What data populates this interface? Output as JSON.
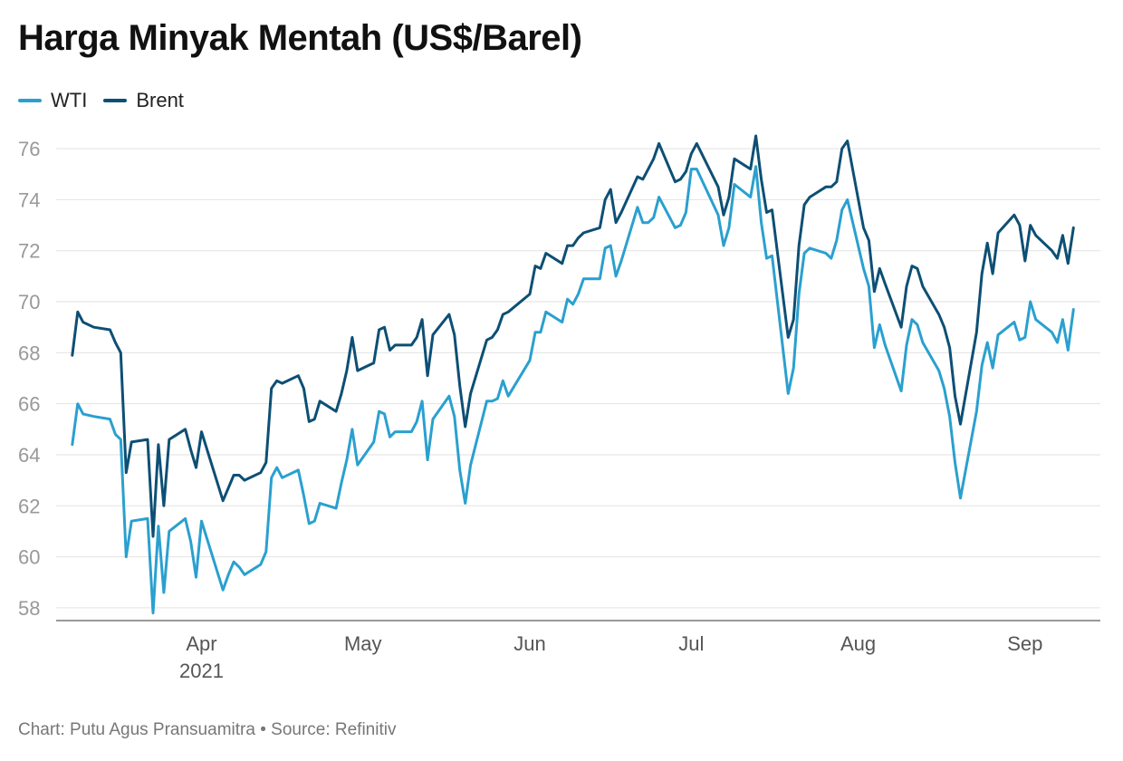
{
  "chart_data": {
    "type": "line",
    "title": "Harga Minyak Mentah (US$/Barel)",
    "footer": {
      "credit": "Chart: Putu Agus Pransuamitra",
      "separator": "•",
      "source": "Source: Refinitiv"
    },
    "xlabel": "",
    "ylabel": "",
    "ylim": [
      57.5,
      76.5
    ],
    "yticks": [
      58,
      60,
      62,
      64,
      66,
      68,
      70,
      72,
      74,
      76
    ],
    "xlim": [
      "2021-03-05",
      "2021-09-15"
    ],
    "xticks": [
      {
        "date": "2021-04-01",
        "label": "Apr",
        "sublabel": "2021"
      },
      {
        "date": "2021-05-01",
        "label": "May",
        "sublabel": ""
      },
      {
        "date": "2021-06-01",
        "label": "Jun",
        "sublabel": ""
      },
      {
        "date": "2021-07-01",
        "label": "Jul",
        "sublabel": ""
      },
      {
        "date": "2021-08-01",
        "label": "Aug",
        "sublabel": ""
      },
      {
        "date": "2021-09-01",
        "label": "Sep",
        "sublabel": ""
      }
    ],
    "grid": true,
    "legend_position": "top-left",
    "series": [
      {
        "name": "WTI",
        "color": "#2aa0cf",
        "points": [
          [
            "2021-03-08",
            64.4
          ],
          [
            "2021-03-09",
            66.0
          ],
          [
            "2021-03-10",
            65.6
          ],
          [
            "2021-03-12",
            65.5
          ],
          [
            "2021-03-15",
            65.4
          ],
          [
            "2021-03-16",
            64.8
          ],
          [
            "2021-03-17",
            64.6
          ],
          [
            "2021-03-18",
            60.0
          ],
          [
            "2021-03-19",
            61.4
          ],
          [
            "2021-03-22",
            61.5
          ],
          [
            "2021-03-23",
            57.8
          ],
          [
            "2021-03-24",
            61.2
          ],
          [
            "2021-03-25",
            58.6
          ],
          [
            "2021-03-26",
            61.0
          ],
          [
            "2021-03-29",
            61.5
          ],
          [
            "2021-03-30",
            60.6
          ],
          [
            "2021-03-31",
            59.2
          ],
          [
            "2021-04-01",
            61.4
          ],
          [
            "2021-04-05",
            58.7
          ],
          [
            "2021-04-06",
            59.3
          ],
          [
            "2021-04-07",
            59.8
          ],
          [
            "2021-04-08",
            59.6
          ],
          [
            "2021-04-09",
            59.3
          ],
          [
            "2021-04-12",
            59.7
          ],
          [
            "2021-04-13",
            60.2
          ],
          [
            "2021-04-14",
            63.1
          ],
          [
            "2021-04-15",
            63.5
          ],
          [
            "2021-04-16",
            63.1
          ],
          [
            "2021-04-19",
            63.4
          ],
          [
            "2021-04-20",
            62.4
          ],
          [
            "2021-04-21",
            61.3
          ],
          [
            "2021-04-22",
            61.4
          ],
          [
            "2021-04-23",
            62.1
          ],
          [
            "2021-04-26",
            61.9
          ],
          [
            "2021-04-27",
            62.9
          ],
          [
            "2021-04-28",
            63.8
          ],
          [
            "2021-04-29",
            65.0
          ],
          [
            "2021-04-30",
            63.6
          ],
          [
            "2021-05-03",
            64.5
          ],
          [
            "2021-05-04",
            65.7
          ],
          [
            "2021-05-05",
            65.6
          ],
          [
            "2021-05-06",
            64.7
          ],
          [
            "2021-05-07",
            64.9
          ],
          [
            "2021-05-10",
            64.9
          ],
          [
            "2021-05-11",
            65.3
          ],
          [
            "2021-05-12",
            66.1
          ],
          [
            "2021-05-13",
            63.8
          ],
          [
            "2021-05-14",
            65.4
          ],
          [
            "2021-05-17",
            66.3
          ],
          [
            "2021-05-18",
            65.5
          ],
          [
            "2021-05-19",
            63.4
          ],
          [
            "2021-05-20",
            62.1
          ],
          [
            "2021-05-21",
            63.6
          ],
          [
            "2021-05-24",
            66.1
          ],
          [
            "2021-05-25",
            66.1
          ],
          [
            "2021-05-26",
            66.2
          ],
          [
            "2021-05-27",
            66.9
          ],
          [
            "2021-05-28",
            66.3
          ],
          [
            "2021-06-01",
            67.7
          ],
          [
            "2021-06-02",
            68.8
          ],
          [
            "2021-06-03",
            68.8
          ],
          [
            "2021-06-04",
            69.6
          ],
          [
            "2021-06-07",
            69.2
          ],
          [
            "2021-06-08",
            70.1
          ],
          [
            "2021-06-09",
            69.9
          ],
          [
            "2021-06-10",
            70.3
          ],
          [
            "2021-06-11",
            70.9
          ],
          [
            "2021-06-14",
            70.9
          ],
          [
            "2021-06-15",
            72.1
          ],
          [
            "2021-06-16",
            72.2
          ],
          [
            "2021-06-17",
            71.0
          ],
          [
            "2021-06-18",
            71.6
          ],
          [
            "2021-06-21",
            73.7
          ],
          [
            "2021-06-22",
            73.1
          ],
          [
            "2021-06-23",
            73.1
          ],
          [
            "2021-06-24",
            73.3
          ],
          [
            "2021-06-25",
            74.1
          ],
          [
            "2021-06-28",
            72.9
          ],
          [
            "2021-06-29",
            73.0
          ],
          [
            "2021-06-30",
            73.5
          ],
          [
            "2021-07-01",
            75.2
          ],
          [
            "2021-07-02",
            75.2
          ],
          [
            "2021-07-06",
            73.4
          ],
          [
            "2021-07-07",
            72.2
          ],
          [
            "2021-07-08",
            72.9
          ],
          [
            "2021-07-09",
            74.6
          ],
          [
            "2021-07-12",
            74.1
          ],
          [
            "2021-07-13",
            75.3
          ],
          [
            "2021-07-14",
            73.1
          ],
          [
            "2021-07-15",
            71.7
          ],
          [
            "2021-07-16",
            71.8
          ],
          [
            "2021-07-19",
            66.4
          ],
          [
            "2021-07-20",
            67.4
          ],
          [
            "2021-07-21",
            70.3
          ],
          [
            "2021-07-22",
            71.9
          ],
          [
            "2021-07-23",
            72.1
          ],
          [
            "2021-07-26",
            71.9
          ],
          [
            "2021-07-27",
            71.7
          ],
          [
            "2021-07-28",
            72.4
          ],
          [
            "2021-07-29",
            73.6
          ],
          [
            "2021-07-30",
            74.0
          ],
          [
            "2021-08-02",
            71.3
          ],
          [
            "2021-08-03",
            70.6
          ],
          [
            "2021-08-04",
            68.2
          ],
          [
            "2021-08-05",
            69.1
          ],
          [
            "2021-08-06",
            68.3
          ],
          [
            "2021-08-09",
            66.5
          ],
          [
            "2021-08-10",
            68.3
          ],
          [
            "2021-08-11",
            69.3
          ],
          [
            "2021-08-12",
            69.1
          ],
          [
            "2021-08-13",
            68.4
          ],
          [
            "2021-08-16",
            67.3
          ],
          [
            "2021-08-17",
            66.6
          ],
          [
            "2021-08-18",
            65.5
          ],
          [
            "2021-08-19",
            63.7
          ],
          [
            "2021-08-20",
            62.3
          ],
          [
            "2021-08-23",
            65.7
          ],
          [
            "2021-08-24",
            67.5
          ],
          [
            "2021-08-25",
            68.4
          ],
          [
            "2021-08-26",
            67.4
          ],
          [
            "2021-08-27",
            68.7
          ],
          [
            "2021-08-30",
            69.2
          ],
          [
            "2021-08-31",
            68.5
          ],
          [
            "2021-09-01",
            68.6
          ],
          [
            "2021-09-02",
            70.0
          ],
          [
            "2021-09-03",
            69.3
          ],
          [
            "2021-09-06",
            68.8
          ],
          [
            "2021-09-07",
            68.4
          ],
          [
            "2021-09-08",
            69.3
          ],
          [
            "2021-09-09",
            68.1
          ],
          [
            "2021-09-10",
            69.7
          ]
        ]
      },
      {
        "name": "Brent",
        "color": "#0d4f74",
        "points": [
          [
            "2021-03-08",
            67.9
          ],
          [
            "2021-03-09",
            69.6
          ],
          [
            "2021-03-10",
            69.2
          ],
          [
            "2021-03-12",
            69.0
          ],
          [
            "2021-03-15",
            68.9
          ],
          [
            "2021-03-16",
            68.4
          ],
          [
            "2021-03-17",
            68.0
          ],
          [
            "2021-03-18",
            63.3
          ],
          [
            "2021-03-19",
            64.5
          ],
          [
            "2021-03-22",
            64.6
          ],
          [
            "2021-03-23",
            60.8
          ],
          [
            "2021-03-24",
            64.4
          ],
          [
            "2021-03-25",
            62.0
          ],
          [
            "2021-03-26",
            64.6
          ],
          [
            "2021-03-29",
            65.0
          ],
          [
            "2021-03-30",
            64.2
          ],
          [
            "2021-03-31",
            63.5
          ],
          [
            "2021-04-01",
            64.9
          ],
          [
            "2021-04-05",
            62.2
          ],
          [
            "2021-04-06",
            62.7
          ],
          [
            "2021-04-07",
            63.2
          ],
          [
            "2021-04-08",
            63.2
          ],
          [
            "2021-04-09",
            63.0
          ],
          [
            "2021-04-12",
            63.3
          ],
          [
            "2021-04-13",
            63.7
          ],
          [
            "2021-04-14",
            66.6
          ],
          [
            "2021-04-15",
            66.9
          ],
          [
            "2021-04-16",
            66.8
          ],
          [
            "2021-04-19",
            67.1
          ],
          [
            "2021-04-20",
            66.6
          ],
          [
            "2021-04-21",
            65.3
          ],
          [
            "2021-04-22",
            65.4
          ],
          [
            "2021-04-23",
            66.1
          ],
          [
            "2021-04-26",
            65.7
          ],
          [
            "2021-04-27",
            66.4
          ],
          [
            "2021-04-28",
            67.3
          ],
          [
            "2021-04-29",
            68.6
          ],
          [
            "2021-04-30",
            67.3
          ],
          [
            "2021-05-03",
            67.6
          ],
          [
            "2021-05-04",
            68.9
          ],
          [
            "2021-05-05",
            69.0
          ],
          [
            "2021-05-06",
            68.1
          ],
          [
            "2021-05-07",
            68.3
          ],
          [
            "2021-05-10",
            68.3
          ],
          [
            "2021-05-11",
            68.6
          ],
          [
            "2021-05-12",
            69.3
          ],
          [
            "2021-05-13",
            67.1
          ],
          [
            "2021-05-14",
            68.7
          ],
          [
            "2021-05-17",
            69.5
          ],
          [
            "2021-05-18",
            68.7
          ],
          [
            "2021-05-19",
            66.7
          ],
          [
            "2021-05-20",
            65.1
          ],
          [
            "2021-05-21",
            66.4
          ],
          [
            "2021-05-24",
            68.5
          ],
          [
            "2021-05-25",
            68.6
          ],
          [
            "2021-05-26",
            68.9
          ],
          [
            "2021-05-27",
            69.5
          ],
          [
            "2021-05-28",
            69.6
          ],
          [
            "2021-06-01",
            70.3
          ],
          [
            "2021-06-02",
            71.4
          ],
          [
            "2021-06-03",
            71.3
          ],
          [
            "2021-06-04",
            71.9
          ],
          [
            "2021-06-07",
            71.5
          ],
          [
            "2021-06-08",
            72.2
          ],
          [
            "2021-06-09",
            72.2
          ],
          [
            "2021-06-10",
            72.5
          ],
          [
            "2021-06-11",
            72.7
          ],
          [
            "2021-06-14",
            72.9
          ],
          [
            "2021-06-15",
            74.0
          ],
          [
            "2021-06-16",
            74.4
          ],
          [
            "2021-06-17",
            73.1
          ],
          [
            "2021-06-18",
            73.5
          ],
          [
            "2021-06-21",
            74.9
          ],
          [
            "2021-06-22",
            74.8
          ],
          [
            "2021-06-23",
            75.2
          ],
          [
            "2021-06-24",
            75.6
          ],
          [
            "2021-06-25",
            76.2
          ],
          [
            "2021-06-28",
            74.7
          ],
          [
            "2021-06-29",
            74.8
          ],
          [
            "2021-06-30",
            75.1
          ],
          [
            "2021-07-01",
            75.8
          ],
          [
            "2021-07-02",
            76.2
          ],
          [
            "2021-07-06",
            74.5
          ],
          [
            "2021-07-07",
            73.4
          ],
          [
            "2021-07-08",
            74.1
          ],
          [
            "2021-07-09",
            75.6
          ],
          [
            "2021-07-12",
            75.2
          ],
          [
            "2021-07-13",
            76.5
          ],
          [
            "2021-07-14",
            74.8
          ],
          [
            "2021-07-15",
            73.5
          ],
          [
            "2021-07-16",
            73.6
          ],
          [
            "2021-07-19",
            68.6
          ],
          [
            "2021-07-20",
            69.3
          ],
          [
            "2021-07-21",
            72.2
          ],
          [
            "2021-07-22",
            73.8
          ],
          [
            "2021-07-23",
            74.1
          ],
          [
            "2021-07-26",
            74.5
          ],
          [
            "2021-07-27",
            74.5
          ],
          [
            "2021-07-28",
            74.7
          ],
          [
            "2021-07-29",
            76.0
          ],
          [
            "2021-07-30",
            76.3
          ],
          [
            "2021-08-02",
            72.9
          ],
          [
            "2021-08-03",
            72.4
          ],
          [
            "2021-08-04",
            70.4
          ],
          [
            "2021-08-05",
            71.3
          ],
          [
            "2021-08-06",
            70.7
          ],
          [
            "2021-08-09",
            69.0
          ],
          [
            "2021-08-10",
            70.6
          ],
          [
            "2021-08-11",
            71.4
          ],
          [
            "2021-08-12",
            71.3
          ],
          [
            "2021-08-13",
            70.6
          ],
          [
            "2021-08-16",
            69.5
          ],
          [
            "2021-08-17",
            69.0
          ],
          [
            "2021-08-18",
            68.2
          ],
          [
            "2021-08-19",
            66.3
          ],
          [
            "2021-08-20",
            65.2
          ],
          [
            "2021-08-23",
            68.8
          ],
          [
            "2021-08-24",
            71.1
          ],
          [
            "2021-08-25",
            72.3
          ],
          [
            "2021-08-26",
            71.1
          ],
          [
            "2021-08-27",
            72.7
          ],
          [
            "2021-08-30",
            73.4
          ],
          [
            "2021-08-31",
            73.0
          ],
          [
            "2021-09-01",
            71.6
          ],
          [
            "2021-09-02",
            73.0
          ],
          [
            "2021-09-03",
            72.6
          ],
          [
            "2021-09-06",
            72.0
          ],
          [
            "2021-09-07",
            71.7
          ],
          [
            "2021-09-08",
            72.6
          ],
          [
            "2021-09-09",
            71.5
          ],
          [
            "2021-09-10",
            72.9
          ]
        ]
      }
    ]
  }
}
